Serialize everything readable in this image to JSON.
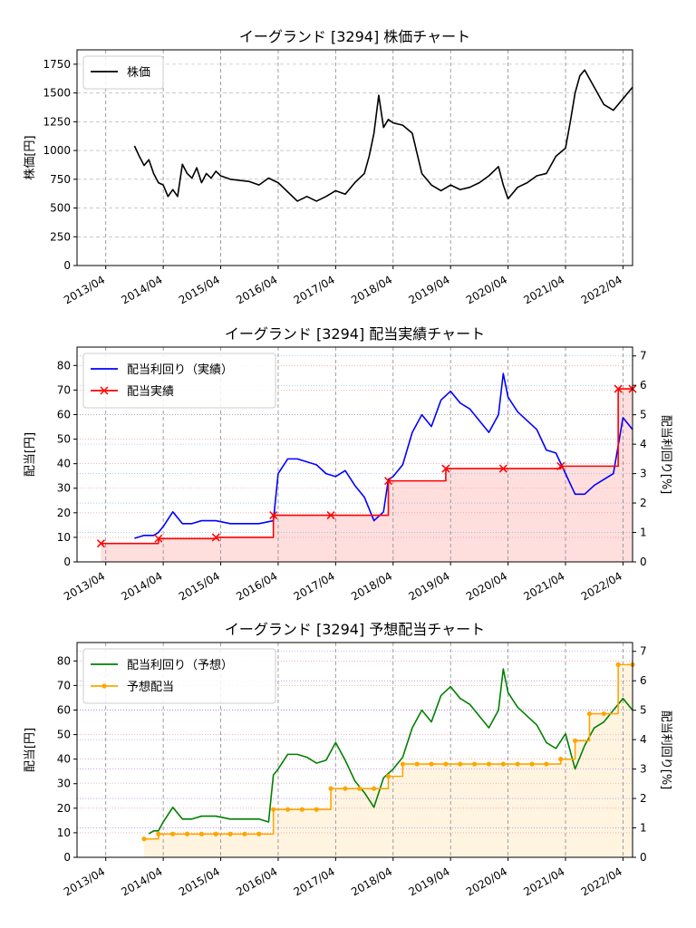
{
  "chart_data": [
    {
      "type": "line",
      "title": "イーグランド [3294]  株価チャート",
      "ylabel": "株価[円]",
      "xlabel": "",
      "x_ticks": [
        "2013/04",
        "2014/04",
        "2015/04",
        "2016/04",
        "2017/04",
        "2018/04",
        "2019/04",
        "2020/04",
        "2021/04",
        "2022/04"
      ],
      "ylim": [
        0,
        1875
      ],
      "y_ticks": [
        0,
        250,
        500,
        750,
        1000,
        1250,
        1500,
        1750
      ],
      "grid": true,
      "legend_position": "top-left",
      "series": [
        {
          "name": "株価",
          "color": "#000000",
          "x": [
            "2013/10",
            "2013/11",
            "2013/12",
            "2014/01",
            "2014/02",
            "2014/03",
            "2014/04",
            "2014/05",
            "2014/06",
            "2014/07",
            "2014/08",
            "2014/09",
            "2014/10",
            "2014/11",
            "2014/12",
            "2015/01",
            "2015/02",
            "2015/03",
            "2015/04",
            "2015/06",
            "2015/08",
            "2015/10",
            "2015/12",
            "2016/02",
            "2016/04",
            "2016/06",
            "2016/08",
            "2016/10",
            "2016/12",
            "2017/02",
            "2017/04",
            "2017/06",
            "2017/08",
            "2017/10",
            "2017/11",
            "2017/12",
            "2018/01",
            "2018/02",
            "2018/03",
            "2018/04",
            "2018/06",
            "2018/08",
            "2018/10",
            "2018/12",
            "2019/02",
            "2019/04",
            "2019/06",
            "2019/08",
            "2019/10",
            "2019/12",
            "2020/02",
            "2020/03",
            "2020/04",
            "2020/06",
            "2020/08",
            "2020/10",
            "2020/12",
            "2021/02",
            "2021/04",
            "2021/05",
            "2021/06",
            "2021/07",
            "2021/08",
            "2021/10",
            "2021/12",
            "2022/02",
            "2022/04",
            "2022/06"
          ],
          "values": [
            1040,
            950,
            870,
            920,
            800,
            720,
            700,
            600,
            660,
            600,
            880,
            800,
            760,
            850,
            720,
            800,
            760,
            820,
            780,
            750,
            740,
            730,
            700,
            760,
            720,
            640,
            560,
            600,
            560,
            600,
            650,
            620,
            720,
            800,
            950,
            1150,
            1480,
            1200,
            1270,
            1240,
            1220,
            1150,
            800,
            700,
            650,
            700,
            660,
            680,
            720,
            780,
            860,
            700,
            580,
            680,
            720,
            780,
            800,
            950,
            1020,
            1250,
            1500,
            1650,
            1700,
            1550,
            1400,
            1350,
            1450,
            1550
          ]
        }
      ]
    },
    {
      "type": "line",
      "title": "イーグランド [3294]  配当実績チャート",
      "ylabel": "配当[円]",
      "y2label": "配当利回り[%]",
      "x_ticks": [
        "2013/04",
        "2014/04",
        "2015/04",
        "2016/04",
        "2017/04",
        "2018/04",
        "2019/04",
        "2020/04",
        "2021/04",
        "2022/04"
      ],
      "ylim": [
        0,
        87.5
      ],
      "y_ticks": [
        0,
        10,
        20,
        30,
        40,
        50,
        60,
        70,
        80
      ],
      "y2lim": [
        0,
        7.3
      ],
      "y2_ticks": [
        0,
        1,
        2,
        3,
        4,
        5,
        6,
        7
      ],
      "grid": true,
      "legend_position": "top-left",
      "series": [
        {
          "name": "配当利回り（実績）",
          "color": "#0000ff",
          "axis": "right",
          "x": [
            "2013/10",
            "2013/12",
            "2014/02",
            "2014/03",
            "2014/04",
            "2014/06",
            "2014/08",
            "2014/10",
            "2014/12",
            "2015/03",
            "2015/06",
            "2015/09",
            "2015/12",
            "2016/03",
            "2016/04",
            "2016/06",
            "2016/08",
            "2016/10",
            "2016/12",
            "2017/02",
            "2017/04",
            "2017/06",
            "2017/08",
            "2017/10",
            "2017/12",
            "2018/02",
            "2018/03",
            "2018/04",
            "2018/06",
            "2018/08",
            "2018/10",
            "2018/12",
            "2019/02",
            "2019/04",
            "2019/06",
            "2019/08",
            "2019/10",
            "2019/12",
            "2020/02",
            "2020/03",
            "2020/04",
            "2020/06",
            "2020/08",
            "2020/10",
            "2020/12",
            "2021/02",
            "2021/04",
            "2021/06",
            "2021/08",
            "2021/10",
            "2021/12",
            "2022/02",
            "2022/04",
            "2022/06"
          ],
          "values": [
            0.8,
            0.9,
            0.9,
            1.0,
            1.2,
            1.7,
            1.3,
            1.3,
            1.4,
            1.4,
            1.3,
            1.3,
            1.3,
            1.4,
            3.0,
            3.5,
            3.5,
            3.4,
            3.3,
            3.0,
            2.9,
            3.1,
            2.6,
            2.2,
            1.4,
            1.7,
            2.8,
            2.9,
            3.3,
            4.4,
            5.0,
            4.6,
            5.5,
            5.8,
            5.4,
            5.2,
            4.8,
            4.4,
            5.0,
            6.4,
            5.6,
            5.1,
            4.8,
            4.5,
            3.8,
            3.7,
            3.0,
            2.3,
            2.3,
            2.6,
            2.8,
            3.0,
            4.9,
            4.5
          ]
        },
        {
          "name": "配当実績",
          "color": "#ff0000",
          "axis": "left",
          "step": true,
          "marker": "x",
          "x": [
            "2013/03",
            "2014/03",
            "2015/03",
            "2016/03",
            "2017/03",
            "2018/03",
            "2019/03",
            "2020/03",
            "2021/03",
            "2022/03",
            "2022/06"
          ],
          "values": [
            7.5,
            9.5,
            10,
            19,
            19,
            33,
            38,
            38,
            39,
            70.5,
            70.5
          ]
        }
      ]
    },
    {
      "type": "line",
      "title": "イーグランド [3294]  予想配当チャート",
      "ylabel": "配当[円]",
      "y2label": "配当利回り[%]",
      "x_ticks": [
        "2013/04",
        "2014/04",
        "2015/04",
        "2016/04",
        "2017/04",
        "2018/04",
        "2019/04",
        "2020/04",
        "2021/04",
        "2022/04"
      ],
      "ylim": [
        0,
        87.5
      ],
      "y_ticks": [
        0,
        10,
        20,
        30,
        40,
        50,
        60,
        70,
        80
      ],
      "y2lim": [
        0,
        7.3
      ],
      "y2_ticks": [
        0,
        1,
        2,
        3,
        4,
        5,
        6,
        7
      ],
      "grid": true,
      "legend_position": "top-left",
      "series": [
        {
          "name": "配当利回り（予想）",
          "color": "#008000",
          "axis": "right",
          "x": [
            "2014/01",
            "2014/02",
            "2014/03",
            "2014/04",
            "2014/06",
            "2014/08",
            "2014/10",
            "2014/12",
            "2015/03",
            "2015/06",
            "2015/09",
            "2015/12",
            "2016/02",
            "2016/03",
            "2016/04",
            "2016/06",
            "2016/08",
            "2016/10",
            "2016/12",
            "2017/02",
            "2017/04",
            "2017/06",
            "2017/08",
            "2017/10",
            "2017/12",
            "2018/02",
            "2018/04",
            "2018/06",
            "2018/08",
            "2018/10",
            "2018/12",
            "2019/02",
            "2019/04",
            "2019/06",
            "2019/08",
            "2019/10",
            "2019/12",
            "2020/02",
            "2020/03",
            "2020/04",
            "2020/06",
            "2020/08",
            "2020/10",
            "2020/12",
            "2021/02",
            "2021/04",
            "2021/06",
            "2021/08",
            "2021/10",
            "2021/12",
            "2022/02",
            "2022/04",
            "2022/06"
          ],
          "values": [
            0.8,
            0.9,
            0.9,
            1.2,
            1.7,
            1.3,
            1.3,
            1.4,
            1.4,
            1.3,
            1.3,
            1.3,
            1.2,
            2.8,
            3.0,
            3.5,
            3.5,
            3.4,
            3.2,
            3.3,
            3.9,
            3.3,
            2.6,
            2.2,
            1.7,
            2.7,
            3.0,
            3.4,
            4.4,
            5.0,
            4.6,
            5.5,
            5.8,
            5.4,
            5.2,
            4.8,
            4.4,
            5.0,
            6.4,
            5.6,
            5.1,
            4.8,
            4.5,
            3.9,
            3.7,
            4.2,
            3.0,
            3.8,
            4.4,
            4.6,
            5.0,
            5.4,
            5.0
          ]
        },
        {
          "name": "予想配当",
          "color": "#ffa500",
          "axis": "left",
          "step": true,
          "marker": "o",
          "x": [
            "2013/12",
            "2014/03",
            "2014/06",
            "2014/09",
            "2014/12",
            "2015/03",
            "2015/06",
            "2015/09",
            "2015/12",
            "2016/03",
            "2016/06",
            "2016/09",
            "2016/12",
            "2017/03",
            "2017/06",
            "2017/09",
            "2017/12",
            "2018/03",
            "2018/06",
            "2018/09",
            "2018/12",
            "2019/03",
            "2019/06",
            "2019/09",
            "2019/12",
            "2020/03",
            "2020/06",
            "2020/09",
            "2020/12",
            "2021/03",
            "2021/06",
            "2021/09",
            "2021/12",
            "2022/03",
            "2022/06"
          ],
          "values": [
            7.5,
            9.5,
            9.5,
            9.5,
            9.5,
            9.5,
            9.5,
            9.5,
            9.5,
            19.5,
            19.5,
            19.5,
            19.5,
            28,
            28,
            28,
            28,
            33,
            38,
            38,
            38,
            38,
            38,
            38,
            38,
            38,
            38,
            38,
            38,
            40,
            47.5,
            58.5,
            58.5,
            78.5,
            78.5
          ]
        }
      ]
    }
  ]
}
